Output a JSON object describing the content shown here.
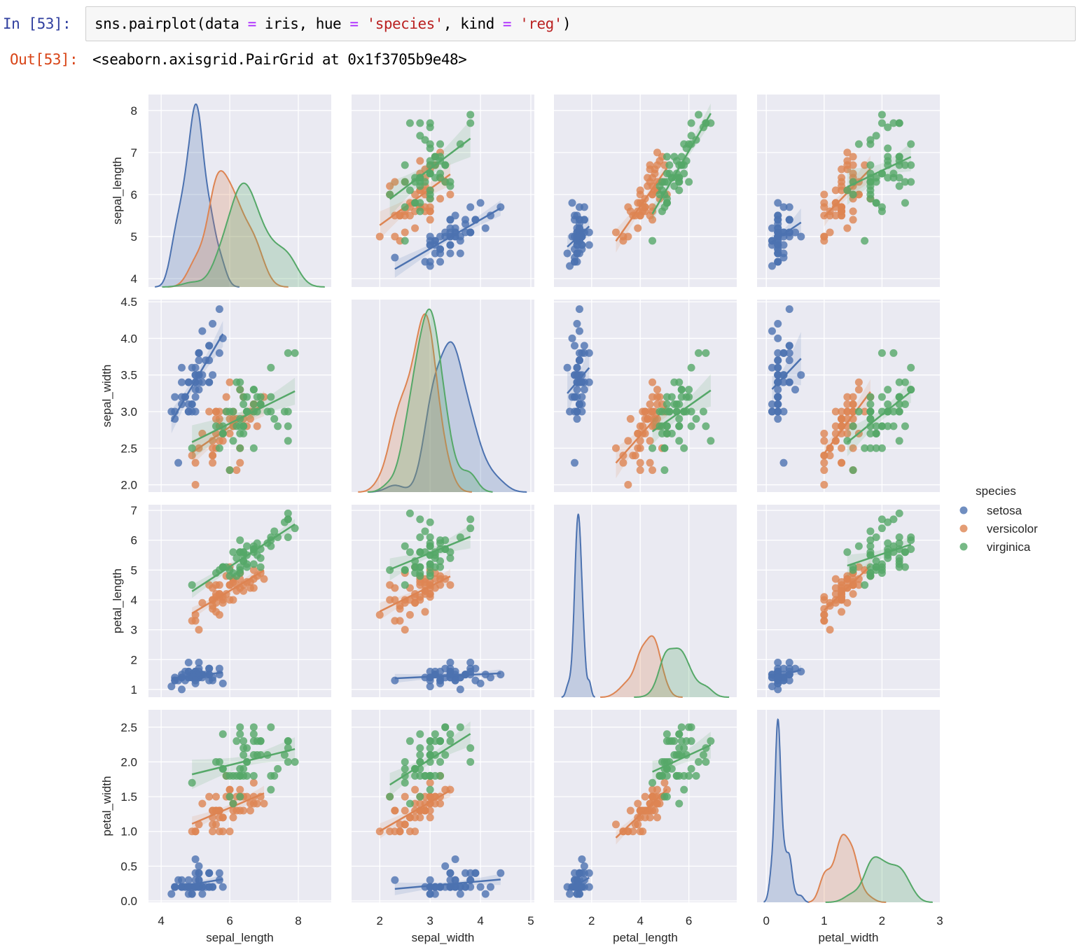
{
  "notebook": {
    "in_prompt": "In  [53]:",
    "out_prompt": "Out[53]:",
    "code": {
      "p1": "sns.pairplot(data ",
      "eq1": "=",
      "p2": " iris, hue ",
      "eq2": "=",
      "s1": " 'species'",
      "p3": ", kind ",
      "eq3": "=",
      "s2": " 'reg'",
      "p4": ")"
    },
    "output": "<seaborn.axisgrid.PairGrid at 0x1f3705b9e48>"
  },
  "chart_data": {
    "type": "scatter",
    "kind": "pairplot-reg",
    "variables": [
      "sepal_length",
      "sepal_width",
      "petal_length",
      "petal_width"
    ],
    "ticks": {
      "sepal_length": [
        4,
        5,
        6,
        7,
        8
      ],
      "sepal_width": [
        2.0,
        2.5,
        3.0,
        3.5,
        4.0,
        4.5
      ],
      "petal_length": [
        1,
        2,
        3,
        4,
        5,
        6,
        7
      ],
      "petal_width": [
        0.0,
        0.5,
        1.0,
        1.5,
        2.0,
        2.5
      ]
    },
    "xticks": {
      "sepal_length": [
        4,
        6,
        8
      ],
      "sepal_width": [
        2,
        3,
        4,
        5
      ],
      "petal_length": [
        2,
        4,
        6
      ],
      "petal_width": [
        0,
        1,
        2,
        3
      ]
    },
    "xlim": {
      "sepal_length": [
        3.63,
        8.96
      ],
      "sepal_width": [
        1.44,
        5.07
      ],
      "petal_length": [
        0.45,
        7.97
      ],
      "petal_width": [
        -0.16,
        3.0
      ]
    },
    "ylim": {
      "sepal_length": [
        3.8,
        8.38
      ],
      "sepal_width": [
        1.9,
        4.53
      ],
      "petal_length": [
        0.74,
        7.19
      ],
      "petal_width": [
        -0.02,
        2.75
      ]
    },
    "diagonal": "kde",
    "grid": true,
    "background_color": "#eaeaf2",
    "legend": {
      "title": "species",
      "placement": "right"
    },
    "series": [
      {
        "name": "setosa",
        "color": "#4c72b0",
        "points": [
          [
            5.1,
            3.5,
            1.4,
            0.2
          ],
          [
            4.9,
            3.0,
            1.4,
            0.2
          ],
          [
            4.7,
            3.2,
            1.3,
            0.2
          ],
          [
            4.6,
            3.1,
            1.5,
            0.2
          ],
          [
            5.0,
            3.6,
            1.4,
            0.2
          ],
          [
            5.4,
            3.9,
            1.7,
            0.4
          ],
          [
            4.6,
            3.4,
            1.4,
            0.3
          ],
          [
            5.0,
            3.4,
            1.5,
            0.2
          ],
          [
            4.4,
            2.9,
            1.4,
            0.2
          ],
          [
            4.9,
            3.1,
            1.5,
            0.1
          ],
          [
            5.4,
            3.7,
            1.5,
            0.2
          ],
          [
            4.8,
            3.4,
            1.6,
            0.2
          ],
          [
            4.8,
            3.0,
            1.4,
            0.1
          ],
          [
            4.3,
            3.0,
            1.1,
            0.1
          ],
          [
            5.8,
            4.0,
            1.2,
            0.2
          ],
          [
            5.7,
            4.4,
            1.5,
            0.4
          ],
          [
            5.4,
            3.9,
            1.3,
            0.4
          ],
          [
            5.1,
            3.5,
            1.4,
            0.3
          ],
          [
            5.7,
            3.8,
            1.7,
            0.3
          ],
          [
            5.1,
            3.8,
            1.5,
            0.3
          ],
          [
            5.4,
            3.4,
            1.7,
            0.2
          ],
          [
            5.1,
            3.7,
            1.5,
            0.4
          ],
          [
            4.6,
            3.6,
            1.0,
            0.2
          ],
          [
            5.1,
            3.3,
            1.7,
            0.5
          ],
          [
            4.8,
            3.4,
            1.9,
            0.2
          ],
          [
            5.0,
            3.0,
            1.6,
            0.2
          ],
          [
            5.0,
            3.4,
            1.6,
            0.4
          ],
          [
            5.2,
            3.5,
            1.5,
            0.2
          ],
          [
            5.2,
            3.4,
            1.4,
            0.2
          ],
          [
            4.7,
            3.2,
            1.6,
            0.2
          ],
          [
            4.8,
            3.1,
            1.6,
            0.2
          ],
          [
            5.4,
            3.4,
            1.5,
            0.4
          ],
          [
            5.2,
            4.1,
            1.5,
            0.1
          ],
          [
            5.5,
            4.2,
            1.4,
            0.2
          ],
          [
            4.9,
            3.1,
            1.5,
            0.2
          ],
          [
            5.0,
            3.2,
            1.2,
            0.2
          ],
          [
            5.5,
            3.5,
            1.3,
            0.2
          ],
          [
            4.9,
            3.6,
            1.4,
            0.1
          ],
          [
            4.4,
            3.0,
            1.3,
            0.2
          ],
          [
            5.1,
            3.4,
            1.5,
            0.2
          ],
          [
            5.0,
            3.5,
            1.3,
            0.3
          ],
          [
            4.5,
            2.3,
            1.3,
            0.3
          ],
          [
            4.4,
            3.2,
            1.3,
            0.2
          ],
          [
            5.0,
            3.5,
            1.6,
            0.6
          ],
          [
            5.1,
            3.8,
            1.9,
            0.4
          ],
          [
            4.8,
            3.0,
            1.4,
            0.3
          ],
          [
            5.1,
            3.8,
            1.6,
            0.2
          ],
          [
            4.6,
            3.2,
            1.4,
            0.2
          ],
          [
            5.3,
            3.7,
            1.5,
            0.2
          ],
          [
            5.0,
            3.3,
            1.4,
            0.2
          ]
        ]
      },
      {
        "name": "versicolor",
        "color": "#dd8452",
        "points": [
          [
            7.0,
            3.2,
            4.7,
            1.4
          ],
          [
            6.4,
            3.2,
            4.5,
            1.5
          ],
          [
            6.9,
            3.1,
            4.9,
            1.5
          ],
          [
            5.5,
            2.3,
            4.0,
            1.3
          ],
          [
            6.5,
            2.8,
            4.6,
            1.5
          ],
          [
            5.7,
            2.8,
            4.5,
            1.3
          ],
          [
            6.3,
            3.3,
            4.7,
            1.6
          ],
          [
            4.9,
            2.4,
            3.3,
            1.0
          ],
          [
            6.6,
            2.9,
            4.6,
            1.3
          ],
          [
            5.2,
            2.7,
            3.9,
            1.4
          ],
          [
            5.0,
            2.0,
            3.5,
            1.0
          ],
          [
            5.9,
            3.0,
            4.2,
            1.5
          ],
          [
            6.0,
            2.2,
            4.0,
            1.0
          ],
          [
            6.1,
            2.9,
            4.7,
            1.4
          ],
          [
            5.6,
            2.9,
            3.6,
            1.3
          ],
          [
            6.7,
            3.1,
            4.4,
            1.4
          ],
          [
            5.6,
            3.0,
            4.5,
            1.5
          ],
          [
            5.8,
            2.7,
            4.1,
            1.0
          ],
          [
            6.2,
            2.2,
            4.5,
            1.5
          ],
          [
            5.6,
            2.5,
            3.9,
            1.1
          ],
          [
            5.9,
            3.2,
            4.8,
            1.8
          ],
          [
            6.1,
            2.8,
            4.0,
            1.3
          ],
          [
            6.3,
            2.5,
            4.9,
            1.5
          ],
          [
            6.1,
            2.8,
            4.7,
            1.2
          ],
          [
            6.4,
            2.9,
            4.3,
            1.3
          ],
          [
            6.6,
            3.0,
            4.4,
            1.4
          ],
          [
            6.8,
            2.8,
            4.8,
            1.4
          ],
          [
            6.7,
            3.0,
            5.0,
            1.7
          ],
          [
            6.0,
            2.9,
            4.5,
            1.5
          ],
          [
            5.7,
            2.6,
            3.5,
            1.0
          ],
          [
            5.5,
            2.4,
            3.8,
            1.1
          ],
          [
            5.5,
            2.4,
            3.7,
            1.0
          ],
          [
            5.8,
            2.7,
            3.9,
            1.2
          ],
          [
            6.0,
            2.7,
            5.1,
            1.6
          ],
          [
            5.4,
            3.0,
            4.5,
            1.5
          ],
          [
            6.0,
            3.4,
            4.5,
            1.6
          ],
          [
            6.7,
            3.1,
            4.7,
            1.5
          ],
          [
            6.3,
            2.3,
            4.4,
            1.3
          ],
          [
            5.6,
            3.0,
            4.1,
            1.3
          ],
          [
            5.5,
            2.5,
            4.0,
            1.3
          ],
          [
            5.5,
            2.6,
            4.4,
            1.2
          ],
          [
            6.1,
            3.0,
            4.6,
            1.4
          ],
          [
            5.8,
            2.6,
            4.0,
            1.2
          ],
          [
            5.0,
            2.3,
            3.3,
            1.0
          ],
          [
            5.6,
            2.7,
            4.2,
            1.3
          ],
          [
            5.7,
            3.0,
            4.2,
            1.2
          ],
          [
            5.7,
            2.9,
            4.2,
            1.3
          ],
          [
            6.2,
            2.9,
            4.3,
            1.3
          ],
          [
            5.1,
            2.5,
            3.0,
            1.1
          ],
          [
            5.7,
            2.8,
            4.1,
            1.3
          ]
        ]
      },
      {
        "name": "virginica",
        "color": "#55a868",
        "points": [
          [
            6.3,
            3.3,
            6.0,
            2.5
          ],
          [
            5.8,
            2.7,
            5.1,
            1.9
          ],
          [
            7.1,
            3.0,
            5.9,
            2.1
          ],
          [
            6.3,
            2.9,
            5.6,
            1.8
          ],
          [
            6.5,
            3.0,
            5.8,
            2.2
          ],
          [
            7.6,
            3.0,
            6.6,
            2.1
          ],
          [
            4.9,
            2.5,
            4.5,
            1.7
          ],
          [
            7.3,
            2.9,
            6.3,
            1.8
          ],
          [
            6.7,
            2.5,
            5.8,
            1.8
          ],
          [
            7.2,
            3.6,
            6.1,
            2.5
          ],
          [
            6.5,
            3.2,
            5.1,
            2.0
          ],
          [
            6.4,
            2.7,
            5.3,
            1.9
          ],
          [
            6.8,
            3.0,
            5.5,
            2.1
          ],
          [
            5.7,
            2.5,
            5.0,
            2.0
          ],
          [
            5.8,
            2.8,
            5.1,
            2.4
          ],
          [
            6.4,
            3.2,
            5.3,
            2.3
          ],
          [
            6.5,
            3.0,
            5.5,
            1.8
          ],
          [
            7.7,
            3.8,
            6.7,
            2.2
          ],
          [
            7.7,
            2.6,
            6.9,
            2.3
          ],
          [
            6.0,
            2.2,
            5.0,
            1.5
          ],
          [
            6.9,
            3.2,
            5.7,
            2.3
          ],
          [
            5.6,
            2.8,
            4.9,
            2.0
          ],
          [
            7.7,
            2.8,
            6.7,
            2.0
          ],
          [
            6.3,
            2.7,
            4.9,
            1.8
          ],
          [
            6.7,
            3.3,
            5.7,
            2.1
          ],
          [
            7.2,
            3.2,
            6.0,
            1.8
          ],
          [
            6.2,
            2.8,
            4.8,
            1.8
          ],
          [
            6.1,
            3.0,
            4.9,
            1.8
          ],
          [
            6.4,
            2.8,
            5.6,
            2.1
          ],
          [
            7.2,
            3.0,
            5.8,
            1.6
          ],
          [
            7.4,
            2.8,
            6.1,
            1.9
          ],
          [
            7.9,
            3.8,
            6.4,
            2.0
          ],
          [
            6.4,
            2.8,
            5.6,
            2.2
          ],
          [
            6.3,
            2.8,
            5.1,
            1.5
          ],
          [
            6.1,
            2.6,
            5.6,
            1.4
          ],
          [
            7.7,
            3.0,
            6.1,
            2.3
          ],
          [
            6.3,
            3.4,
            5.6,
            2.4
          ],
          [
            6.4,
            3.1,
            5.5,
            1.8
          ],
          [
            6.0,
            3.0,
            4.8,
            1.8
          ],
          [
            6.9,
            3.1,
            5.4,
            2.1
          ],
          [
            6.7,
            3.1,
            5.6,
            2.4
          ],
          [
            6.9,
            3.1,
            5.1,
            2.3
          ],
          [
            5.8,
            2.7,
            5.1,
            1.9
          ],
          [
            6.8,
            3.2,
            5.9,
            2.3
          ],
          [
            6.7,
            3.3,
            5.7,
            2.5
          ],
          [
            6.7,
            3.0,
            5.2,
            2.3
          ],
          [
            6.3,
            2.5,
            5.0,
            1.9
          ],
          [
            6.5,
            3.0,
            5.2,
            2.0
          ],
          [
            6.2,
            3.4,
            5.4,
            2.3
          ],
          [
            5.9,
            3.0,
            5.1,
            1.8
          ]
        ]
      }
    ]
  }
}
